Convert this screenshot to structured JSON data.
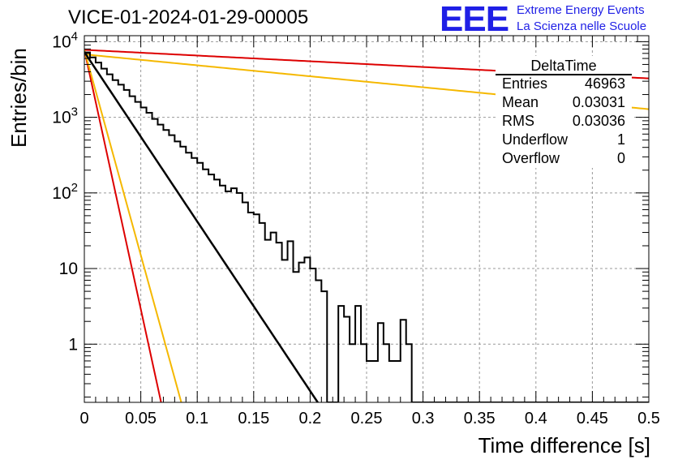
{
  "header": {
    "title": "VICE-01-2024-01-29-00005",
    "logo_text": "EEE",
    "logo_line1": "Extreme Energy Events",
    "logo_line2": "La Scienza nelle Scuole"
  },
  "stats": {
    "title": "DeltaTime",
    "rows": [
      {
        "label": "Entries",
        "value": "46963"
      },
      {
        "label": "Mean",
        "value": "0.03031"
      },
      {
        "label": "RMS",
        "value": "0.03036"
      },
      {
        "label": "Underflow",
        "value": "1"
      },
      {
        "label": "Overflow",
        "value": "0"
      }
    ]
  },
  "chart_data": {
    "type": "histogram",
    "xlabel": "Time difference [s]",
    "ylabel": "Entries/bin",
    "xlim": [
      0,
      0.5
    ],
    "ylim": [
      0.17,
      12000
    ],
    "yscale": "log",
    "grid": true,
    "x_ticks": [
      "0",
      "0.05",
      "0.1",
      "0.15",
      "0.2",
      "0.25",
      "0.3",
      "0.35",
      "0.4",
      "0.45",
      "0.5"
    ],
    "y_ticks": [
      {
        "value": 1,
        "label": "1"
      },
      {
        "value": 10,
        "label": "10"
      },
      {
        "value": 100,
        "label": "10^2"
      },
      {
        "value": 1000,
        "label": "10^3"
      },
      {
        "value": 10000,
        "label": "10^4"
      }
    ],
    "legend_position": "top-right",
    "histogram": {
      "bin_width": 0.005,
      "color": "#000000",
      "counts": [
        7200,
        6200,
        5300,
        4400,
        3700,
        3100,
        2700,
        2300,
        1900,
        1600,
        1350,
        1150,
        950,
        800,
        680,
        580,
        480,
        410,
        340,
        290,
        250,
        205,
        175,
        150,
        125,
        105,
        115,
        100,
        75,
        55,
        52,
        40,
        24,
        30,
        22,
        13,
        23,
        9,
        12,
        14,
        10,
        7,
        5,
        0,
        0,
        3.2,
        2.3,
        1,
        3.2,
        1,
        0.6,
        0.6,
        1.9,
        1,
        0.6,
        0.6,
        2.1,
        1,
        0,
        0,
        0,
        0,
        0,
        0,
        0,
        0,
        0,
        0,
        0,
        0,
        0,
        0,
        0,
        0,
        0,
        0,
        0,
        0,
        0,
        0,
        0,
        0,
        0,
        0,
        0,
        0,
        0,
        0,
        0,
        0,
        0,
        0,
        0,
        0,
        0,
        0,
        0,
        0,
        0,
        0
      ]
    },
    "fit_lines": [
      {
        "color": "#000000",
        "y0": 7300,
        "slope": -0.0516,
        "width": 2.5
      },
      {
        "color": "#dd0000",
        "y0": 7800,
        "slope": -0.00174,
        "width": 2
      },
      {
        "color": "#f5b800",
        "y0": 6800,
        "slope": -0.00334,
        "width": 2
      },
      {
        "color": "#dd0000",
        "y0": 7800,
        "slope": -0.1579,
        "width": 2
      },
      {
        "color": "#f5b800",
        "y0": 7800,
        "slope": -0.125,
        "width": 2
      }
    ]
  }
}
